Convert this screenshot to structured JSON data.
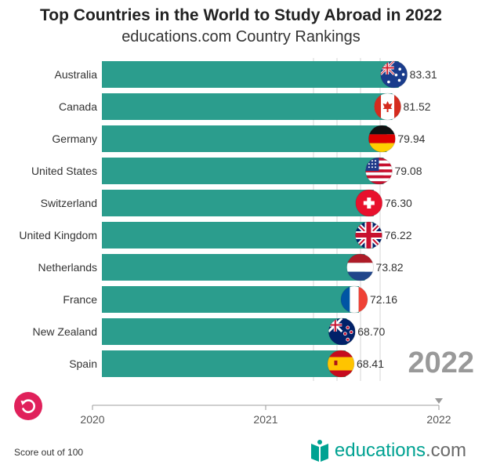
{
  "header": {
    "title": "Top Countries in the World to Study Abroad in 2022",
    "subtitle": "educations.com Country Rankings"
  },
  "year_display": "2022",
  "footer": {
    "note": "Score out of 100",
    "brand": "educations",
    "brand_domain": ".com"
  },
  "colors": {
    "bar": "#2b9d8d",
    "accent": "#e0215b",
    "brand": "#00a292"
  },
  "chart_data": {
    "type": "bar",
    "orientation": "horizontal",
    "title": "Top Countries in the World to Study Abroad in 2022",
    "subtitle": "educations.com Country Rankings",
    "categories": [
      "Australia",
      "Canada",
      "Germany",
      "United States",
      "Switzerland",
      "United Kingdom",
      "Netherlands",
      "France",
      "New Zealand",
      "Spain"
    ],
    "values": [
      83.31,
      81.52,
      79.94,
      79.08,
      76.3,
      76.22,
      73.82,
      72.16,
      68.7,
      68.41
    ],
    "value_labels": [
      "83.31",
      "81.52",
      "79.94",
      "79.08",
      "76.30",
      "76.22",
      "73.82",
      "72.16",
      "68.70",
      "68.41"
    ],
    "flags": [
      "australia-flag",
      "canada-flag",
      "germany-flag",
      "united-states-flag",
      "switzerland-flag",
      "united-kingdom-flag",
      "netherlands-flag",
      "france-flag",
      "new-zealand-flag",
      "spain-flag"
    ],
    "xlim": [
      0,
      88
    ],
    "xlabel": "Score out of 100",
    "timeline": {
      "ticks": [
        "2020",
        "2021",
        "2022"
      ],
      "current": "2022"
    }
  }
}
